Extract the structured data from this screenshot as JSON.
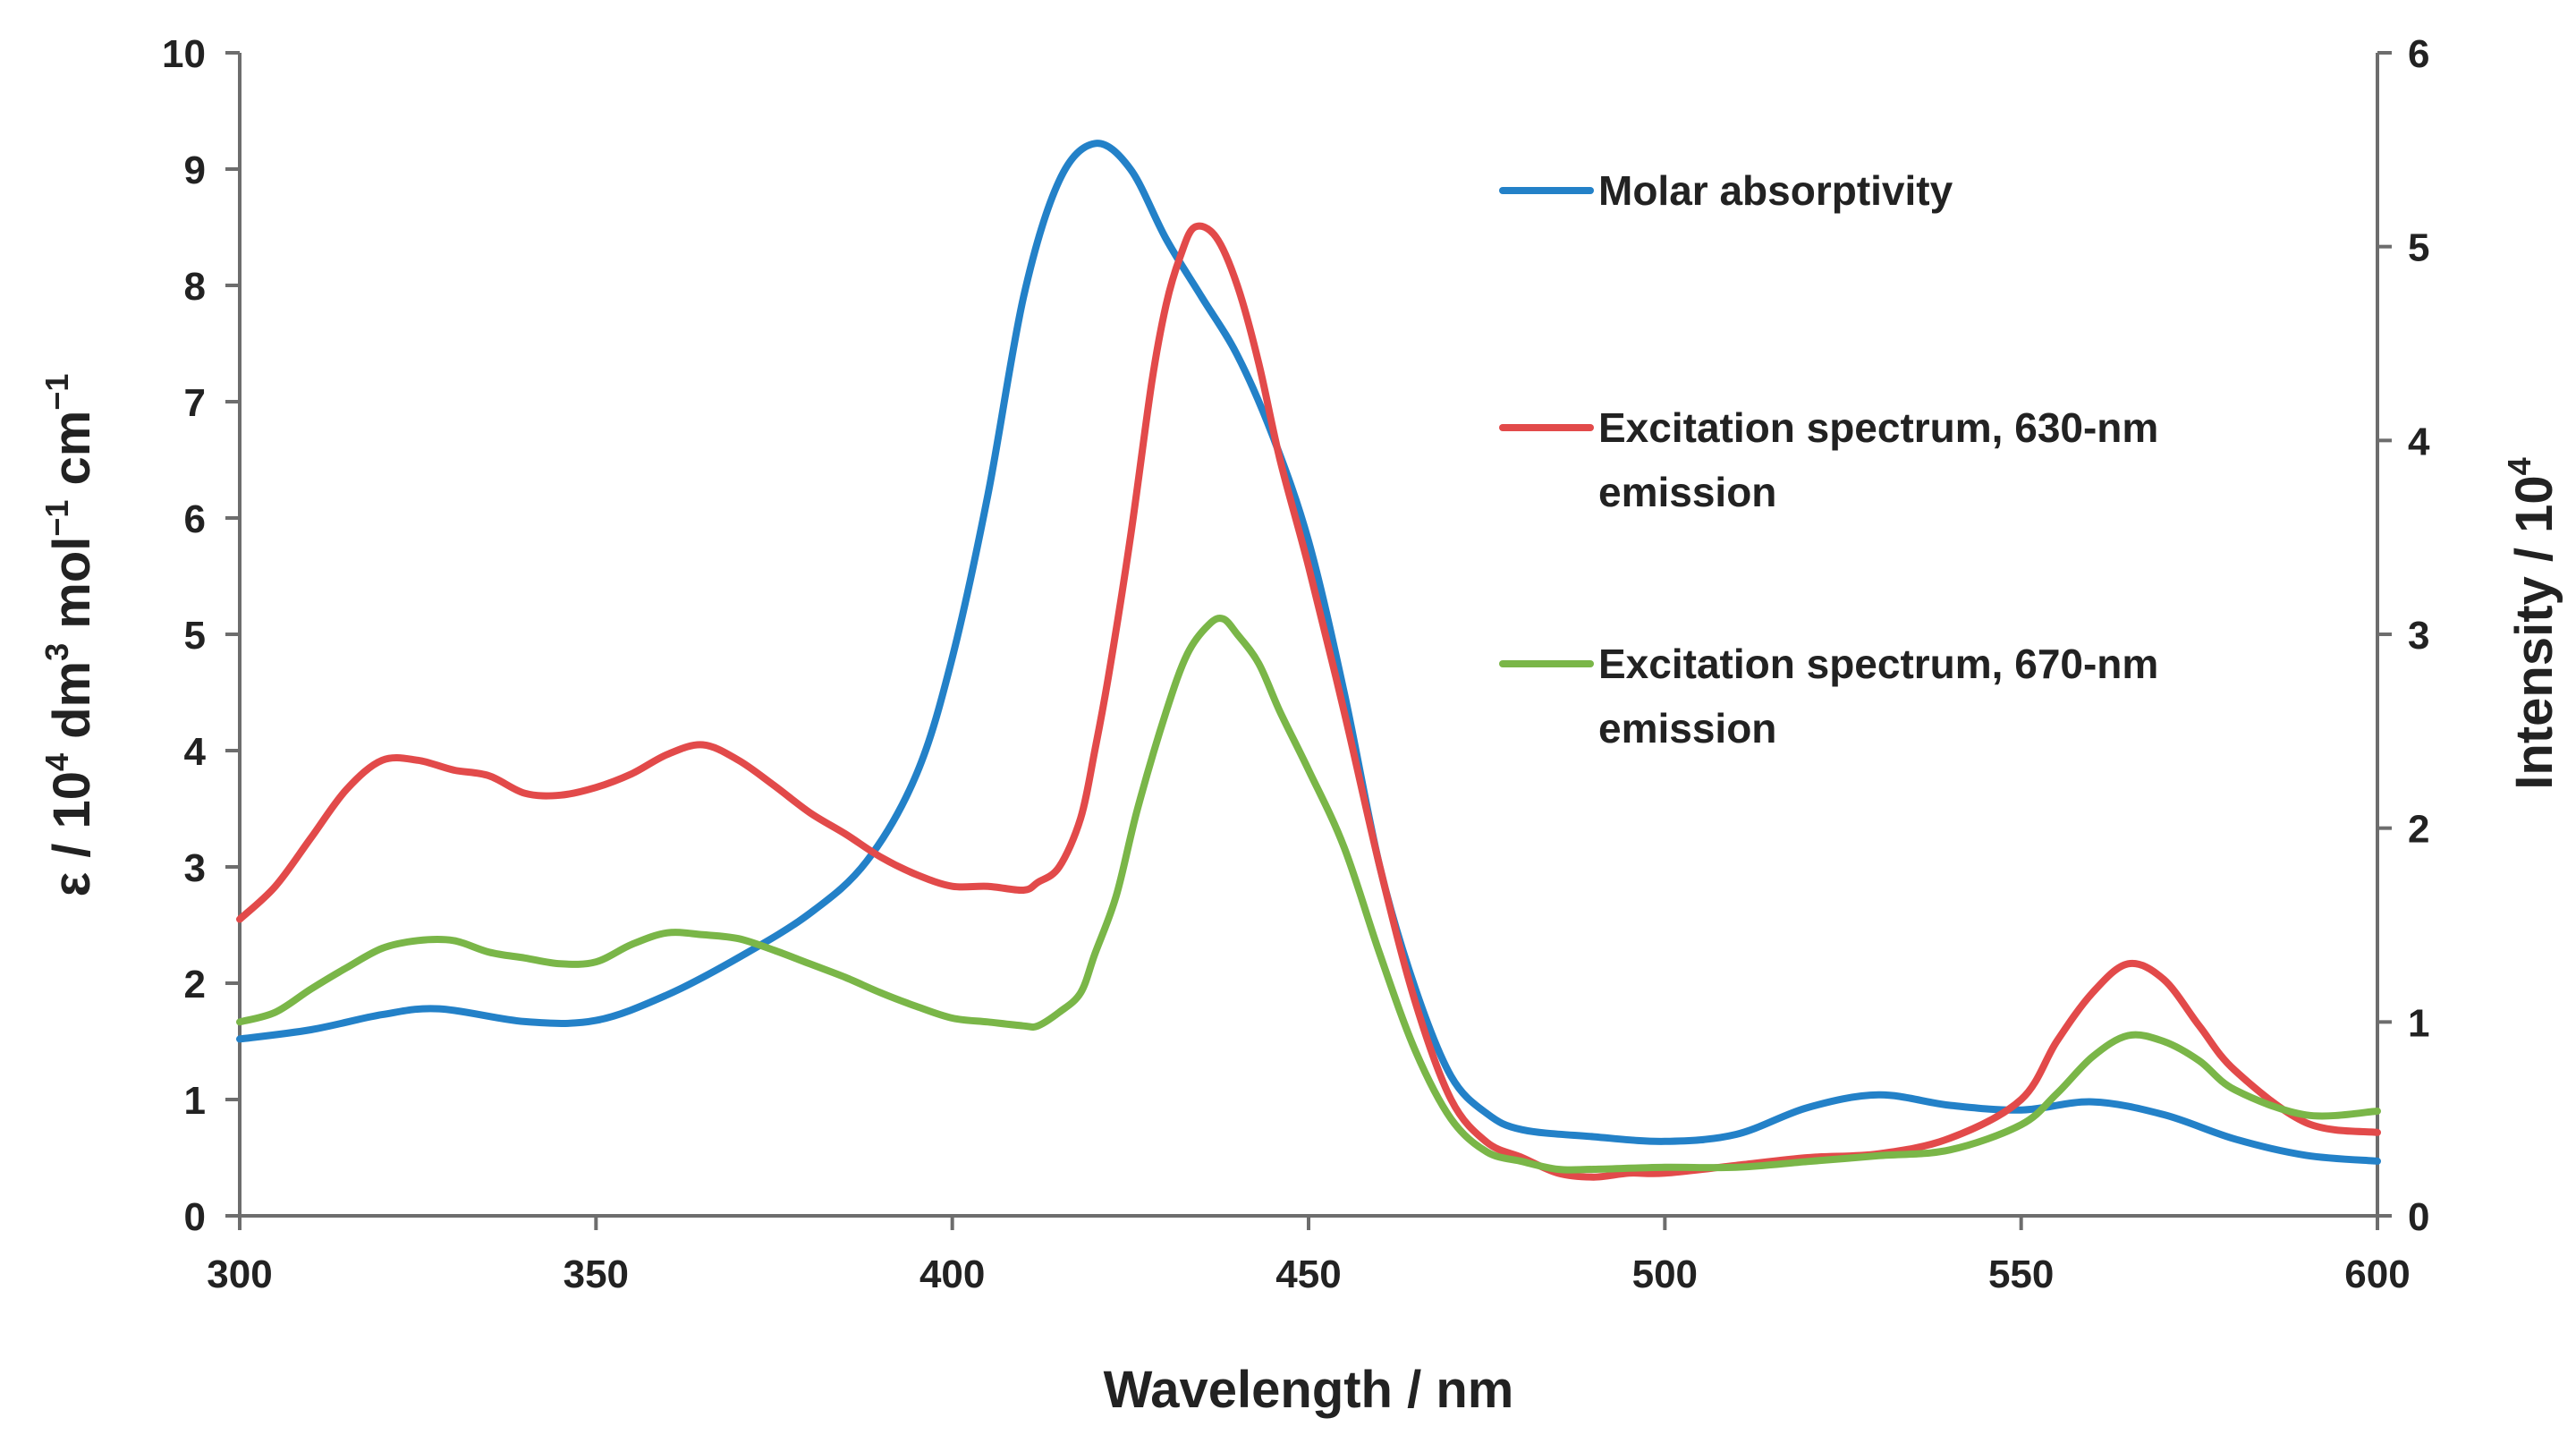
{
  "chart_data": {
    "type": "line",
    "x_axis": {
      "label": "Wavelength / nm",
      "range": [
        300,
        600
      ],
      "ticks": [
        "300",
        "350",
        "400",
        "450",
        "500",
        "550",
        "600"
      ]
    },
    "y_axis_left": {
      "label_parts": {
        "p1": "ε / 10",
        "p1_sup": "4",
        "p2": " dm",
        "p2_sup": "3",
        "p3": " mol",
        "p3_sup": "−1",
        "p4": " cm",
        "p4_sup": "−1"
      },
      "range": [
        0,
        10
      ],
      "ticks": [
        "0",
        "1",
        "2",
        "3",
        "4",
        "5",
        "6",
        "7",
        "8",
        "9",
        "10"
      ]
    },
    "y_axis_right": {
      "label_parts": {
        "p1": "Intensity / 10",
        "p1_sup": "4"
      },
      "range": [
        0,
        6
      ],
      "ticks": [
        "0",
        "1",
        "2",
        "3",
        "4",
        "5",
        "6"
      ]
    },
    "legend": {
      "placement": "top-right inside plot",
      "entries": [
        {
          "lines": [
            "Molar absorptivity"
          ]
        },
        {
          "lines": [
            "Excitation spectrum, 630-nm",
            "emission"
          ]
        },
        {
          "lines": [
            "Excitation spectrum, 670-nm",
            "emission"
          ]
        }
      ]
    },
    "series": [
      {
        "name": "Molar absorptivity",
        "axis": "left",
        "color": "#2381c8",
        "x": [
          300,
          310,
          320,
          328,
          340,
          350,
          360,
          370,
          380,
          388,
          395,
          400,
          405,
          410,
          415,
          420,
          425,
          430,
          435,
          440,
          445,
          450,
          455,
          460,
          465,
          470,
          475,
          480,
          490,
          500,
          510,
          520,
          530,
          540,
          550,
          560,
          570,
          580,
          590,
          600
        ],
        "y": [
          1.52,
          1.6,
          1.73,
          1.78,
          1.67,
          1.68,
          1.9,
          2.22,
          2.6,
          3.05,
          3.8,
          4.8,
          6.2,
          7.9,
          8.9,
          9.22,
          9.0,
          8.4,
          7.9,
          7.4,
          6.7,
          5.8,
          4.5,
          3.0,
          1.95,
          1.2,
          0.88,
          0.74,
          0.68,
          0.64,
          0.7,
          0.93,
          1.04,
          0.95,
          0.91,
          0.98,
          0.87,
          0.66,
          0.52,
          0.47
        ]
      },
      {
        "name": "Excitation spectrum, 630-nm emission",
        "axis": "right",
        "color": "#e24a4a",
        "x": [
          300,
          305,
          310,
          315,
          320,
          325,
          330,
          335,
          340,
          345,
          350,
          355,
          360,
          365,
          370,
          375,
          380,
          385,
          390,
          395,
          400,
          405,
          410,
          412,
          415,
          418,
          420,
          422,
          425,
          428,
          430,
          432,
          434,
          437,
          440,
          443,
          446,
          450,
          455,
          460,
          465,
          470,
          475,
          480,
          485,
          490,
          495,
          500,
          510,
          520,
          530,
          540,
          550,
          555,
          560,
          565,
          570,
          575,
          580,
          590,
          600
        ],
        "y": [
          1.53,
          1.7,
          1.95,
          2.2,
          2.35,
          2.35,
          2.3,
          2.27,
          2.18,
          2.17,
          2.21,
          2.28,
          2.38,
          2.43,
          2.35,
          2.22,
          2.08,
          1.97,
          1.85,
          1.76,
          1.7,
          1.7,
          1.68,
          1.72,
          1.8,
          2.05,
          2.4,
          2.8,
          3.5,
          4.3,
          4.7,
          4.95,
          5.1,
          5.05,
          4.8,
          4.4,
          3.9,
          3.35,
          2.6,
          1.8,
          1.1,
          0.6,
          0.38,
          0.3,
          0.22,
          0.2,
          0.22,
          0.22,
          0.26,
          0.3,
          0.32,
          0.4,
          0.6,
          0.9,
          1.15,
          1.3,
          1.22,
          0.98,
          0.75,
          0.48,
          0.43
        ]
      },
      {
        "name": "Excitation spectrum, 670-nm emission",
        "axis": "right",
        "color": "#7ab648",
        "x": [
          300,
          305,
          310,
          315,
          320,
          325,
          330,
          335,
          340,
          345,
          350,
          355,
          360,
          365,
          370,
          375,
          380,
          385,
          390,
          395,
          400,
          405,
          410,
          412,
          415,
          418,
          420,
          423,
          426,
          430,
          433,
          436,
          438,
          440,
          443,
          446,
          450,
          455,
          460,
          465,
          470,
          475,
          480,
          485,
          490,
          500,
          510,
          520,
          530,
          540,
          550,
          555,
          560,
          565,
          570,
          575,
          580,
          590,
          600
        ],
        "y": [
          1.0,
          1.05,
          1.17,
          1.28,
          1.38,
          1.42,
          1.42,
          1.36,
          1.33,
          1.3,
          1.31,
          1.4,
          1.46,
          1.45,
          1.43,
          1.37,
          1.3,
          1.23,
          1.15,
          1.08,
          1.02,
          1.0,
          0.98,
          0.98,
          1.05,
          1.15,
          1.35,
          1.65,
          2.1,
          2.6,
          2.9,
          3.05,
          3.08,
          3.0,
          2.85,
          2.6,
          2.3,
          1.9,
          1.35,
          0.85,
          0.5,
          0.33,
          0.28,
          0.24,
          0.24,
          0.25,
          0.25,
          0.28,
          0.31,
          0.34,
          0.47,
          0.63,
          0.82,
          0.93,
          0.9,
          0.8,
          0.65,
          0.52,
          0.54
        ]
      }
    ]
  }
}
